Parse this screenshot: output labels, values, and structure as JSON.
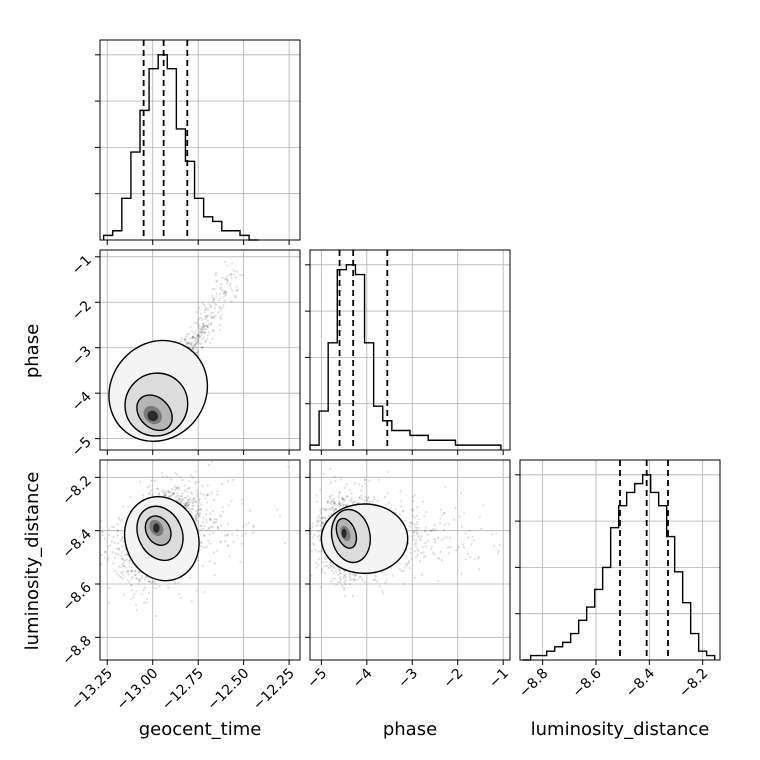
{
  "chart_data": {
    "type": "corner",
    "parameters": [
      "geocent_time",
      "phase",
      "luminosity_distance"
    ],
    "axis_labels": {
      "x": [
        "geocent_time",
        "phase",
        "luminosity_distance"
      ],
      "y": [
        "",
        "phase",
        "luminosity_distance"
      ]
    },
    "grid": true,
    "ranges": {
      "geocent_time": [
        -13.29,
        -12.19
      ],
      "phase": [
        -5.25,
        -0.85
      ],
      "luminosity_distance": [
        -8.885,
        -8.135
      ]
    },
    "ticks": {
      "geocent_time": [
        "-13.25",
        "-13.00",
        "-12.75",
        "-12.50",
        "-12.25"
      ],
      "phase": [
        "-5",
        "-4",
        "-3",
        "-2",
        "-1"
      ],
      "luminosity_distance": [
        "-8.8",
        "-8.6",
        "-8.4",
        "-8.2"
      ]
    },
    "tick_values": {
      "geocent_time": [
        -13.25,
        -13.0,
        -12.75,
        -12.5,
        -12.25
      ],
      "phase": [
        -5,
        -4,
        -3,
        -2,
        -1
      ],
      "luminosity_distance": [
        -8.8,
        -8.6,
        -8.4,
        -8.2
      ]
    },
    "histograms": [
      {
        "parameter": "geocent_time",
        "bin_edges": [
          -13.27,
          -13.22,
          -13.17,
          -13.12,
          -13.07,
          -13.02,
          -12.97,
          -12.92,
          -12.87,
          -12.82,
          -12.77,
          -12.72,
          -12.67,
          -12.62,
          -12.57,
          -12.52,
          -12.47,
          -12.42
        ],
        "counts": [
          1,
          2,
          9,
          19,
          28,
          37,
          40,
          37,
          24,
          17,
          9,
          5,
          4,
          2,
          2,
          1,
          0
        ],
        "quantiles": [
          -13.05,
          -12.94,
          -12.81
        ]
      },
      {
        "parameter": "phase",
        "bin_edges": [
          -5.25,
          -5.05,
          -4.85,
          -4.65,
          -4.45,
          -4.25,
          -4.05,
          -3.85,
          -3.65,
          -3.45,
          -3.25,
          -3.05,
          -2.85,
          -2.65,
          -2.45,
          -2.25,
          -2.05,
          -1.85,
          -1.65,
          -1.45,
          -1.25,
          -1.05
        ],
        "counts": [
          1,
          8,
          22,
          37,
          38,
          36,
          22,
          9,
          6,
          4,
          4,
          3,
          3,
          2,
          2,
          2,
          1,
          1,
          1,
          1,
          1
        ],
        "quantiles": [
          -4.6,
          -4.3,
          -3.55
        ]
      },
      {
        "parameter": "luminosity_distance",
        "bin_edges": [
          -8.875,
          -8.845,
          -8.815,
          -8.785,
          -8.755,
          -8.725,
          -8.695,
          -8.665,
          -8.635,
          -8.605,
          -8.575,
          -8.545,
          -8.515,
          -8.485,
          -8.455,
          -8.425,
          -8.395,
          -8.365,
          -8.335,
          -8.305,
          -8.275,
          -8.245,
          -8.215,
          -8.185,
          -8.155
        ],
        "counts": [
          0,
          1,
          1,
          2,
          3,
          4,
          6,
          9,
          12,
          16,
          21,
          30,
          35,
          38,
          40,
          42,
          38,
          35,
          28,
          20,
          13,
          6,
          2,
          1
        ],
        "quantiles": [
          -8.51,
          -8.41,
          -8.33
        ]
      }
    ],
    "joint_2d": [
      {
        "x": "geocent_time",
        "y": "phase",
        "peak": [
          -13.0,
          -4.5
        ],
        "sample_shape": "elongated positive correlation from (-13.1, -4.8) to (-12.55, -1.5)",
        "contours": 3
      },
      {
        "x": "geocent_time",
        "y": "luminosity_distance",
        "peak": [
          -12.98,
          -8.39
        ],
        "sample_shape": "roughly elliptical, mild positive correlation",
        "contours": 3
      },
      {
        "x": "phase",
        "y": "luminosity_distance",
        "peak": [
          -4.5,
          -8.41
        ],
        "sample_shape": "compact core near phase -4.5 with tail toward larger phase",
        "contours": 3
      }
    ]
  }
}
